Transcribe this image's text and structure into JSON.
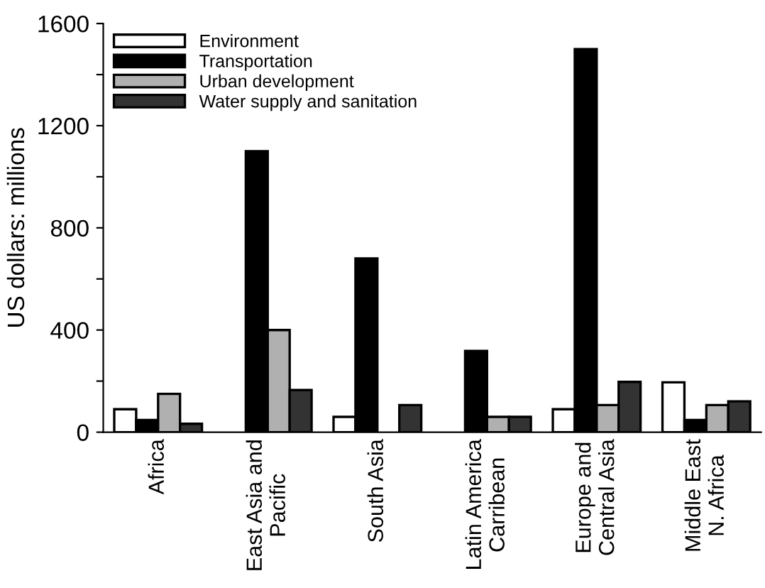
{
  "chart_data": {
    "type": "bar",
    "categories": [
      "Africa",
      "East Asia and\nPacific",
      "South Asia",
      "Latin America\nCarribean",
      "Europe and\nCentral Asia",
      "Middle East\nN. Africa"
    ],
    "series": [
      {
        "name": "Environment",
        "color": "#ffffff",
        "values": [
          90,
          null,
          60,
          null,
          90,
          195
        ]
      },
      {
        "name": "Transportation",
        "color": "#000000",
        "values": [
          48,
          1100,
          680,
          318,
          1500,
          48
        ]
      },
      {
        "name": "Urban development",
        "color": "#b0b0b0",
        "values": [
          150,
          400,
          null,
          60,
          106,
          106
        ]
      },
      {
        "name": "Water supply and sanitation",
        "color": "#333333",
        "values": [
          33,
          165,
          106,
          60,
          197,
          121
        ]
      }
    ],
    "ylabel": "US dollars: millions",
    "ylim": [
      0,
      1600
    ],
    "yticks": [
      0,
      {
        "value": 200,
        "label": null
      },
      400,
      {
        "value": 600,
        "label": null
      },
      800,
      {
        "value": 1000,
        "label": null
      },
      1200,
      {
        "value": 1400,
        "label": null
      },
      1600
    ],
    "grid": false,
    "legend": "top left"
  }
}
